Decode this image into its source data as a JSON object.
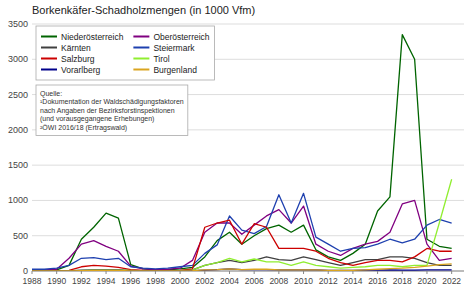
{
  "chart_data": {
    "type": "line",
    "title": "Borkenkäfer-Schadholzmengen (in 1000 Vfm)",
    "x": [
      1988,
      1989,
      1990,
      1991,
      1992,
      1993,
      1994,
      1995,
      1996,
      1997,
      1998,
      1999,
      2000,
      2001,
      2002,
      2003,
      2004,
      2005,
      2006,
      2007,
      2008,
      2009,
      2010,
      2011,
      2012,
      2013,
      2014,
      2015,
      2016,
      2017,
      2018,
      2019,
      2020,
      2021,
      2022
    ],
    "series": [
      {
        "name": "Niederösterreich",
        "color": "#006400",
        "values": [
          10,
          10,
          15,
          80,
          450,
          620,
          820,
          750,
          90,
          30,
          15,
          15,
          30,
          50,
          200,
          430,
          550,
          380,
          500,
          600,
          650,
          550,
          650,
          300,
          200,
          150,
          250,
          380,
          850,
          1050,
          3350,
          3000,
          450,
          350,
          320
        ]
      },
      {
        "name": "Oberösterreich",
        "color": "#800080",
        "values": [
          15,
          15,
          25,
          180,
          380,
          430,
          350,
          280,
          70,
          30,
          20,
          25,
          40,
          150,
          550,
          680,
          680,
          520,
          650,
          780,
          870,
          680,
          920,
          380,
          280,
          220,
          320,
          380,
          420,
          550,
          950,
          1000,
          380,
          150,
          180
        ]
      },
      {
        "name": "Kärnten",
        "color": "#404040",
        "values": [
          5,
          5,
          5,
          5,
          10,
          15,
          15,
          15,
          10,
          5,
          5,
          5,
          5,
          15,
          80,
          120,
          150,
          120,
          150,
          200,
          160,
          150,
          200,
          160,
          120,
          80,
          120,
          160,
          160,
          200,
          200,
          180,
          120,
          80,
          80
        ]
      },
      {
        "name": "Steiermark",
        "color": "#1E40AF",
        "values": [
          25,
          25,
          40,
          80,
          180,
          190,
          160,
          180,
          60,
          40,
          30,
          40,
          60,
          80,
          250,
          370,
          780,
          580,
          530,
          630,
          1080,
          680,
          1100,
          480,
          380,
          280,
          320,
          330,
          380,
          450,
          400,
          450,
          650,
          730,
          680
        ]
      },
      {
        "name": "Salzburg",
        "color": "#CC0000",
        "values": [
          5,
          5,
          5,
          10,
          60,
          80,
          70,
          50,
          20,
          10,
          5,
          5,
          10,
          30,
          620,
          680,
          720,
          380,
          670,
          620,
          320,
          320,
          320,
          280,
          180,
          120,
          80,
          120,
          150,
          150,
          130,
          200,
          320,
          280,
          280
        ]
      },
      {
        "name": "Tirol",
        "color": "#90EE30",
        "values": [
          3,
          3,
          3,
          5,
          8,
          12,
          12,
          12,
          8,
          3,
          3,
          3,
          6,
          12,
          80,
          120,
          180,
          130,
          170,
          130,
          130,
          80,
          130,
          80,
          60,
          40,
          50,
          60,
          80,
          80,
          60,
          80,
          80,
          680,
          1300
        ]
      },
      {
        "name": "Vorarlberg",
        "color": "#00008B",
        "values": [
          3,
          3,
          3,
          3,
          8,
          8,
          8,
          8,
          3,
          3,
          3,
          3,
          3,
          6,
          12,
          20,
          30,
          20,
          20,
          20,
          15,
          15,
          15,
          15,
          10,
          8,
          10,
          12,
          12,
          15,
          12,
          12,
          15,
          15,
          15
        ]
      },
      {
        "name": "Burgenland",
        "color": "#DAA520",
        "values": [
          3,
          3,
          3,
          3,
          6,
          8,
          8,
          8,
          3,
          3,
          3,
          3,
          3,
          6,
          15,
          20,
          30,
          20,
          25,
          25,
          15,
          15,
          15,
          15,
          10,
          10,
          10,
          15,
          25,
          35,
          40,
          50,
          70,
          90,
          100
        ]
      }
    ],
    "annotation": "Quelle:\n¹Dokumentation der Waldschädigungsfaktoren\nnach Angaben der Bezirksforstinspektionen\n(und vorausgegangene Erhebungen)\n²ÖWI 2016/18 (Ertragswald)",
    "xlim": [
      1988,
      2023
    ],
    "xticks": [
      1988,
      1990,
      1992,
      1994,
      1996,
      1998,
      2000,
      2002,
      2004,
      2006,
      2008,
      2010,
      2012,
      2014,
      2016,
      2018,
      2020,
      2022
    ],
    "ylim": [
      0,
      3500
    ],
    "yticks": [
      0,
      500,
      1000,
      1500,
      2000,
      2500,
      3000,
      3500
    ],
    "grid": true,
    "legend": "upper left"
  }
}
